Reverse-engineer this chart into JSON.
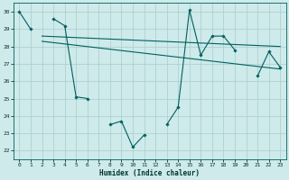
{
  "xlabel": "Humidex (Indice chaleur)",
  "xlim": [
    -0.5,
    23.5
  ],
  "ylim": [
    21.5,
    30.5
  ],
  "xticks": [
    0,
    1,
    2,
    3,
    4,
    5,
    6,
    7,
    8,
    9,
    10,
    11,
    12,
    13,
    14,
    15,
    16,
    17,
    18,
    19,
    20,
    21,
    22,
    23
  ],
  "yticks": [
    22,
    23,
    24,
    25,
    26,
    27,
    28,
    29,
    30
  ],
  "bg_color": "#ceeaea",
  "grid_color": "#a8cccc",
  "line_color": "#005f5f",
  "line1_x": [
    0,
    1,
    3,
    4,
    5,
    6,
    8,
    9,
    10,
    11,
    13,
    14,
    15,
    16,
    17,
    18,
    19,
    21,
    22,
    23
  ],
  "line1_y": [
    30.0,
    29.0,
    29.6,
    29.2,
    25.1,
    25.0,
    23.5,
    23.7,
    22.2,
    22.9,
    23.5,
    24.5,
    30.1,
    27.5,
    28.6,
    28.6,
    27.8,
    26.3,
    27.7,
    26.8
  ],
  "line1_gaps": [
    [
      1,
      3
    ],
    [
      6,
      8
    ],
    [
      11,
      13
    ],
    [
      19,
      21
    ]
  ],
  "line2_x": [
    2,
    23
  ],
  "line2_y": [
    28.6,
    28.0
  ],
  "line3_x": [
    2,
    23
  ],
  "line3_y": [
    28.3,
    26.7
  ]
}
